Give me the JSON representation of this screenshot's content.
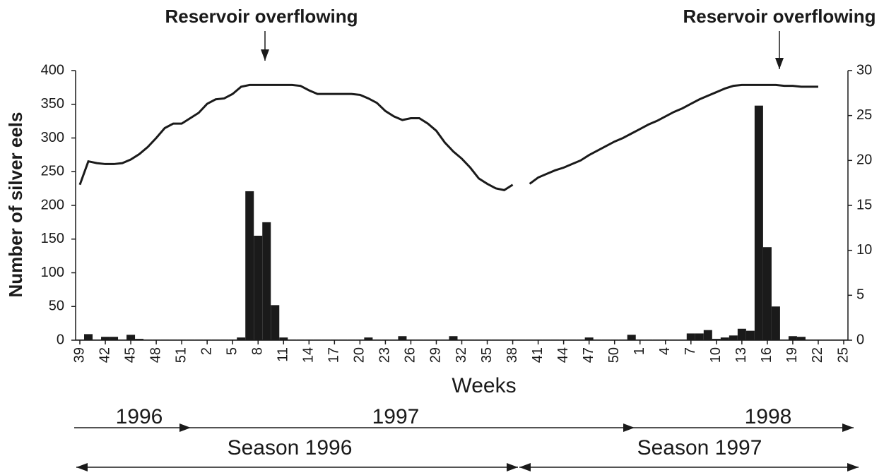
{
  "chart_data": {
    "type": "bar",
    "x_label": "Weeks",
    "y_label": "Number of silver eels",
    "annotations": [
      "Reservoir overflowing",
      "Reservoir overflowing"
    ],
    "year_labels": [
      "1996",
      "1997",
      "1998"
    ],
    "season_labels": [
      "Season 1996",
      "Season 1997"
    ],
    "categories": [
      "39",
      null,
      null,
      "42",
      null,
      null,
      "45",
      null,
      null,
      "48",
      null,
      null,
      "51",
      null,
      null,
      "2",
      null,
      null,
      "5",
      null,
      null,
      "8",
      null,
      null,
      "11",
      null,
      null,
      "14",
      null,
      null,
      "17",
      null,
      null,
      "20",
      null,
      null,
      "23",
      null,
      null,
      "26",
      null,
      null,
      "29",
      null,
      null,
      "32",
      null,
      null,
      "35",
      null,
      null,
      "38",
      null,
      null,
      "41",
      null,
      null,
      "44",
      null,
      null,
      "47",
      null,
      null,
      "50",
      null,
      null,
      "1",
      null,
      null,
      "4",
      null,
      null,
      "7",
      null,
      null,
      "10",
      null,
      null,
      "13",
      null,
      null,
      "16",
      null,
      null,
      "19",
      null,
      null,
      "22",
      null,
      null,
      "25"
    ],
    "series": [
      {
        "type": "bar",
        "color": "#1a1a1a",
        "values": [
          1,
          9,
          1,
          5,
          5,
          1,
          8,
          2,
          1,
          1,
          1,
          1,
          1,
          1,
          1,
          1,
          1,
          1,
          1,
          4,
          221,
          155,
          175,
          52,
          4,
          1,
          1,
          1,
          1,
          1,
          1,
          1,
          1,
          1,
          4,
          1,
          1,
          1,
          6,
          1,
          1,
          1,
          1,
          1,
          6,
          1,
          1,
          1,
          1,
          1,
          1,
          1,
          1,
          1,
          1,
          1,
          1,
          1,
          1,
          1,
          4,
          1,
          1,
          1,
          1,
          8,
          1,
          1,
          1,
          1,
          1,
          1,
          10,
          10,
          15,
          2,
          4,
          7,
          17,
          14,
          348,
          138,
          50,
          1,
          6,
          5,
          1,
          1,
          1,
          1,
          1
        ]
      },
      {
        "type": "line",
        "axis": "y2",
        "color": "#1a1a1a",
        "values": [
          17.3,
          19.9,
          19.7,
          19.6,
          19.6,
          19.7,
          20.1,
          20.7,
          21.5,
          22.5,
          23.6,
          24.1,
          24.1,
          24.7,
          25.3,
          26.3,
          26.8,
          26.9,
          27.4,
          28.2,
          28.4,
          28.4,
          28.4,
          28.4,
          28.4,
          28.4,
          28.3,
          27.8,
          27.4,
          27.4,
          27.4,
          27.4,
          27.4,
          27.3,
          26.9,
          26.4,
          25.5,
          24.9,
          24.5,
          24.7,
          24.7,
          24.1,
          23.3,
          22.0,
          21.0,
          20.2,
          19.2,
          18.0,
          17.4,
          16.9,
          16.7,
          17.3,
          null,
          17.4,
          18.1,
          18.5,
          18.9,
          19.2,
          19.6,
          20.0,
          20.6,
          21.1,
          21.6,
          22.1,
          22.5,
          23.0,
          23.5,
          24.0,
          24.4,
          24.9,
          25.4,
          25.8,
          26.3,
          26.8,
          27.2,
          27.6,
          28.0,
          28.3,
          28.4,
          28.4,
          28.4,
          28.4,
          28.4,
          28.3,
          28.3,
          28.2,
          28.2,
          28.2,
          null,
          null,
          null
        ]
      }
    ],
    "ylim": [
      0,
      400
    ],
    "yticks": [
      0,
      50,
      100,
      150,
      200,
      250,
      300,
      350,
      400
    ],
    "y2lim": [
      0,
      30
    ],
    "y2ticks": [
      0,
      5,
      10,
      15,
      20,
      25,
      30
    ],
    "grid": false
  }
}
